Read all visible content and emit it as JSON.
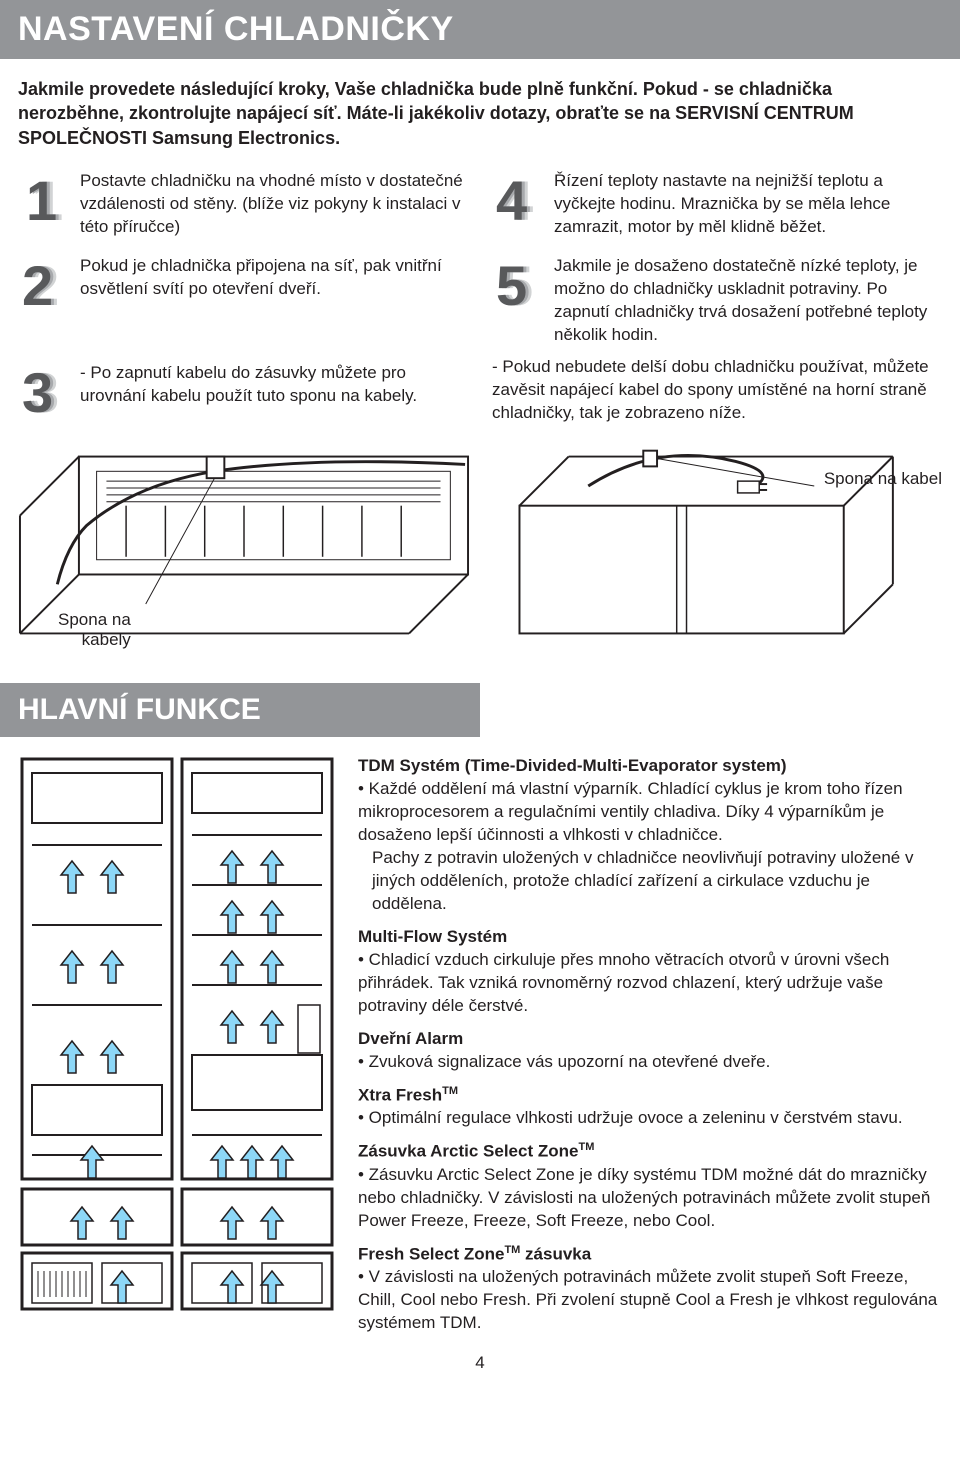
{
  "colors": {
    "headerBg": "#939598",
    "headerText": "#ffffff",
    "bodyText": "#231f20",
    "numShadow1": "#d1d3d4",
    "numShadow2": "#a7a9ac",
    "numMain": "#58595b",
    "arrowFill": "#8dd7f7"
  },
  "header1": "NASTAVENÍ CHLADNIČKY",
  "intro": "Jakmile provedete následující kroky, Vaše chladnička bude plně funkční. Pokud - se chladnička nerozběhne, zkontrolujte napájecí síť. Máte-li jakékoliv dotazy, obraťte se na SERVISNÍ CENTRUM SPOLEČNOSTI Samsung Electronics.",
  "steps": {
    "s1": "Postavte chladničku na vhodné místo v dostatečné vzdálenosti od stěny. (blíže viz pokyny k instalaci v této příručce)",
    "s2": "Pokud je chladnička připojena na síť, pak vnitřní osvětlení svítí po otevření dveří.",
    "s3": "- Po zapnutí kabelu do zásuvky můžete pro urovnání kabelu použít tuto sponu na kabely.",
    "s4": "Řízení teploty nastavte na nejnižší teplotu a vyčkejte hodinu. Mraznička by se měla lehce zamrazit, motor by měl klidně běžet.",
    "s5": "Jakmile je dosaženo dostatečně nízké teploty, je možno do chladničky uskladnit potraviny. Po zapnutí chladničky trvá dosažení potřebné teploty několik hodin.",
    "note": "- Pokud nebudete delší dobu chladničku používat, můžete zavěsit napájecí kabel do spony umístěné na horní straně chladničky, tak je zobrazeno níže."
  },
  "labels": {
    "sponaNaKabely": "Spona na\nkabely",
    "sponaNaKabel": "Spona na kabel"
  },
  "header2": "HLAVNÍ FUNKCE",
  "features": {
    "tdm_title": "TDM Systém (Time-Divided-Multi-Evaporator system)",
    "tdm_body1": "• Každé oddělení má vlastní výparník. Chladící cyklus je krom toho řízen mikroprocesorem a regulačními ventily chladiva. Díky 4 výparníkům je dosaženo lepší účinnosti a vlhkosti v chladničce.",
    "tdm_body2": "Pachy z potravin uložených v chladničce neovlivňují potraviny uložené v jiných odděleních, protože chladící zařízení a cirkulace vzduchu je oddělena.",
    "mf_title": "Multi-Flow Systém",
    "mf_body": "• Chladicí vzduch cirkuluje přes mnoho větracích otvorů v úrovni všech přihrádek. Tak vzniká rovnoměrný rozvod chlazení, který udržuje vaše potraviny déle čerstvé.",
    "alarm_title": "Dveřní Alarm",
    "alarm_body": "• Zvuková signalizace vás upozorní na otevřené dveře.",
    "xf_title_a": "Xtra Fresh",
    "xf_title_b": "TM",
    "xf_body": "• Optimální regulace vlhkosti udržuje ovoce a zeleninu v čerstvém stavu.",
    "asz_title_a": "Zásuvka Arctic Select Zone",
    "asz_title_b": "TM",
    "asz_body": "• Zásuvku Arctic Select Zone je díky systému TDM možné dát do mrazničky nebo chladničky. V závislosti na uložených potravinách můžete zvolit stupeň Power Freeze, Freeze, Soft Freeze, nebo Cool.",
    "fsz_title_a": "Fresh Select Zone",
    "fsz_title_b": "TM",
    "fsz_title_c": " zásuvka",
    "fsz_body": "• V závislosti na uložených potravinách můžete zvolit stupeň Soft Freeze, Chill, Cool nebo Fresh. Při zvolení stupně Cool a Fresh je vlhkost regulována systémem TDM."
  },
  "pageNumber": "4"
}
